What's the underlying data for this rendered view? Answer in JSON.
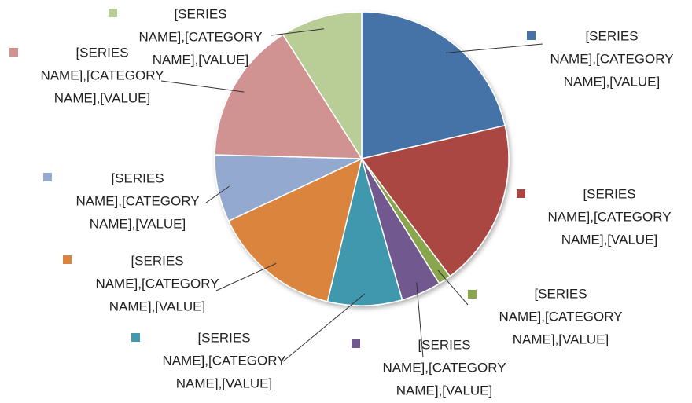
{
  "chart_data": {
    "type": "pie",
    "values": [
      21.4,
      18.4,
      1.4,
      4.4,
      8.2,
      14.3,
      7.4,
      15.6,
      9
    ],
    "colors": [
      "#4572a7",
      "#aa4643",
      "#89a54e",
      "#71588f",
      "#4198af",
      "#db843d",
      "#93a9cf",
      "#d19392",
      "#b9cd96"
    ],
    "data_labels": [
      [
        "[SERIES",
        "NAME],[CATEGORY",
        "NAME],[VALUE]"
      ],
      [
        "[SERIES",
        "NAME],[CATEGORY",
        "NAME],[VALUE]"
      ],
      [
        "[SERIES",
        "NAME],[CATEGORY",
        "NAME],[VALUE]"
      ],
      [
        "[SERIES",
        "NAME],[CATEGORY",
        "NAME],[VALUE]"
      ],
      [
        "[SERIES",
        "NAME],[CATEGORY",
        "NAME],[VALUE]"
      ],
      [
        "[SERIES",
        "NAME],[CATEGORY",
        "NAME],[VALUE]"
      ],
      [
        "[SERIES",
        "NAME],[CATEGORY",
        "NAME],[VALUE]"
      ],
      [
        "[SERIES",
        "NAME],[CATEGORY",
        "NAME],[VALUE]"
      ],
      [
        "[SERIES",
        "NAME],[CATEGORY",
        "NAME],[VALUE]"
      ]
    ]
  }
}
